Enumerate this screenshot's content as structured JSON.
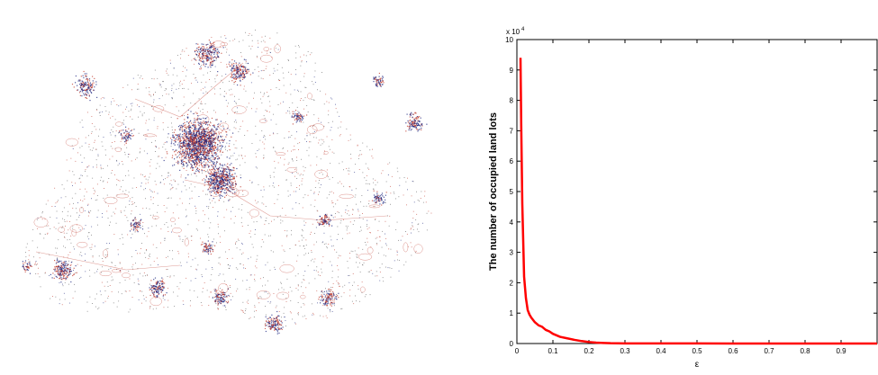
{
  "figure": {
    "left_panel": {
      "description_icon": "urban-land-lot-map",
      "colors": {
        "red": "#c0392b",
        "blue": "#1a237e",
        "grey": "#555555"
      }
    },
    "chart_data": {
      "type": "line",
      "title": "",
      "xlabel": "ε",
      "ylabel": "The number of occupied land lots",
      "exponent_label": "x 10",
      "exponent_power": "4",
      "xlim": [
        0,
        1
      ],
      "ylim": [
        0,
        10
      ],
      "x_ticks": [
        "0",
        "0.1",
        "0.2",
        "0.3",
        "0.4",
        "0.5",
        "0.6",
        "0.7",
        "0.8",
        "0.9"
      ],
      "x_tick_values": [
        0,
        0.1,
        0.2,
        0.3,
        0.4,
        0.5,
        0.6,
        0.7,
        0.8,
        0.9
      ],
      "y_ticks": [
        "0",
        "1",
        "2",
        "3",
        "4",
        "5",
        "6",
        "7",
        "8",
        "9",
        "10"
      ],
      "y_tick_values": [
        0,
        1,
        2,
        3,
        4,
        5,
        6,
        7,
        8,
        9,
        10
      ],
      "grid": false,
      "series": [
        {
          "color": "#ff0000",
          "x": [
            0.01,
            0.012,
            0.015,
            0.02,
            0.025,
            0.03,
            0.035,
            0.04,
            0.05,
            0.06,
            0.07,
            0.08,
            0.09,
            0.1,
            0.12,
            0.14,
            0.16,
            0.18,
            0.2,
            0.22,
            0.24,
            0.26,
            0.3,
            0.4,
            0.5,
            0.6,
            0.7,
            0.8,
            0.9,
            1.0
          ],
          "y": [
            9.4,
            7.2,
            4.6,
            2.2,
            1.5,
            1.1,
            0.95,
            0.85,
            0.7,
            0.6,
            0.55,
            0.45,
            0.4,
            0.32,
            0.22,
            0.17,
            0.12,
            0.08,
            0.05,
            0.03,
            0.02,
            0.01,
            0.005,
            0.003,
            0.002,
            0.001,
            0.001,
            0.0,
            0.0,
            0.0
          ]
        }
      ]
    }
  }
}
